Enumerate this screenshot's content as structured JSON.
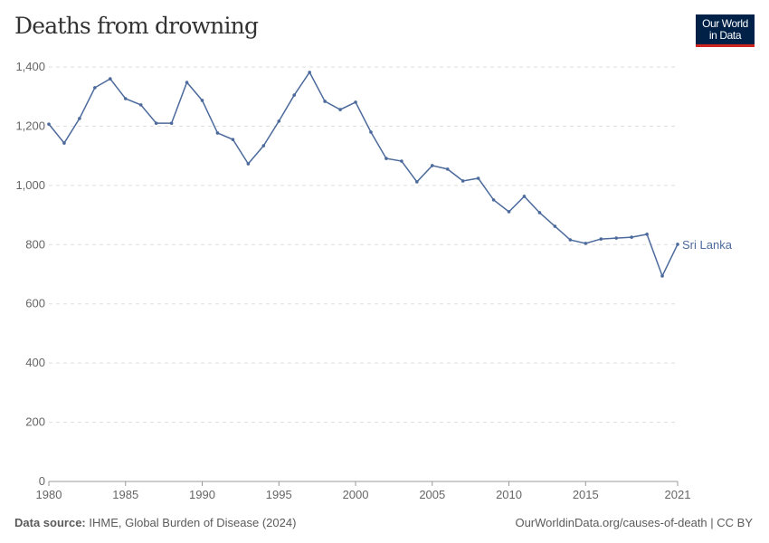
{
  "title": "Deaths from drowning",
  "logo": {
    "line1": "Our World",
    "line2": "in Data"
  },
  "footer": {
    "source_label": "Data source:",
    "source_text": "IHME, Global Burden of Disease (2024)",
    "right": "OurWorldinData.org/causes-of-death | CC BY"
  },
  "colors": {
    "series": "#4c6a9c",
    "grid": "#dddddd",
    "logo_bg": "#002147",
    "logo_accent": "#ce261e"
  },
  "chart_data": {
    "type": "line",
    "title": "Deaths from drowning",
    "xlim": [
      1980,
      2021
    ],
    "ylim": [
      0,
      1400
    ],
    "x_ticks": [
      1980,
      1985,
      1990,
      1995,
      2000,
      2005,
      2010,
      2015,
      2021
    ],
    "y_ticks": [
      0,
      200,
      400,
      600,
      800,
      1000,
      1200,
      1400
    ],
    "y_tick_labels": [
      "0",
      "200",
      "400",
      "600",
      "800",
      "1,000",
      "1,200",
      "1,400"
    ],
    "grid": "horizontal dashed",
    "series": [
      {
        "name": "Sri Lanka",
        "x": [
          1980,
          1981,
          1982,
          1983,
          1984,
          1985,
          1986,
          1987,
          1988,
          1989,
          1990,
          1991,
          1992,
          1993,
          1994,
          1995,
          1996,
          1997,
          1998,
          1999,
          2000,
          2001,
          2002,
          2003,
          2004,
          2005,
          2006,
          2007,
          2008,
          2009,
          2010,
          2011,
          2012,
          2013,
          2014,
          2015,
          2016,
          2017,
          2018,
          2019,
          2020,
          2021
        ],
        "values": [
          1207,
          1143,
          1226,
          1330,
          1360,
          1293,
          1272,
          1210,
          1210,
          1348,
          1287,
          1177,
          1155,
          1073,
          1134,
          1217,
          1305,
          1382,
          1284,
          1256,
          1281,
          1180,
          1091,
          1082,
          1012,
          1067,
          1055,
          1015,
          1024,
          951,
          911,
          963,
          908,
          862,
          816,
          804,
          819,
          822,
          825,
          835,
          694,
          801
        ]
      }
    ]
  }
}
